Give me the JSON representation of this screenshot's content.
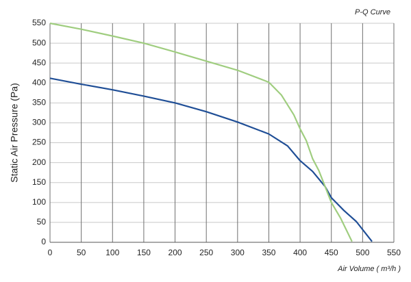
{
  "chart_data": {
    "type": "line",
    "title": "P-Q Curve",
    "x_label": "Air Volume ( m³/h )",
    "y_label": "Static Air Pressure  (Pa)",
    "series": [
      {
        "color": "#1f4e96",
        "x": [
          0,
          50,
          100,
          150,
          200,
          250,
          300,
          350,
          380,
          400,
          420,
          440,
          450,
          470,
          490,
          515
        ],
        "values": [
          412,
          397,
          383,
          367,
          350,
          328,
          302,
          272,
          242,
          205,
          178,
          140,
          112,
          80,
          52,
          2
        ]
      },
      {
        "color": "#9fcd7f",
        "x": [
          0,
          50,
          100,
          150,
          200,
          250,
          300,
          350,
          370,
          390,
          400,
          410,
          420,
          430,
          440,
          450,
          465,
          483
        ],
        "values": [
          550,
          535,
          518,
          500,
          478,
          455,
          432,
          402,
          370,
          320,
          285,
          255,
          210,
          180,
          140,
          100,
          60,
          2
        ]
      }
    ],
    "xlim": [
      0,
      550
    ],
    "xticks": [
      0,
      50,
      100,
      150,
      200,
      250,
      300,
      350,
      400,
      450,
      500,
      550
    ],
    "ylim": [
      0,
      550
    ],
    "yticks": [
      0,
      50,
      100,
      150,
      200,
      250,
      300,
      350,
      400,
      450,
      500,
      550
    ],
    "grid": true
  }
}
